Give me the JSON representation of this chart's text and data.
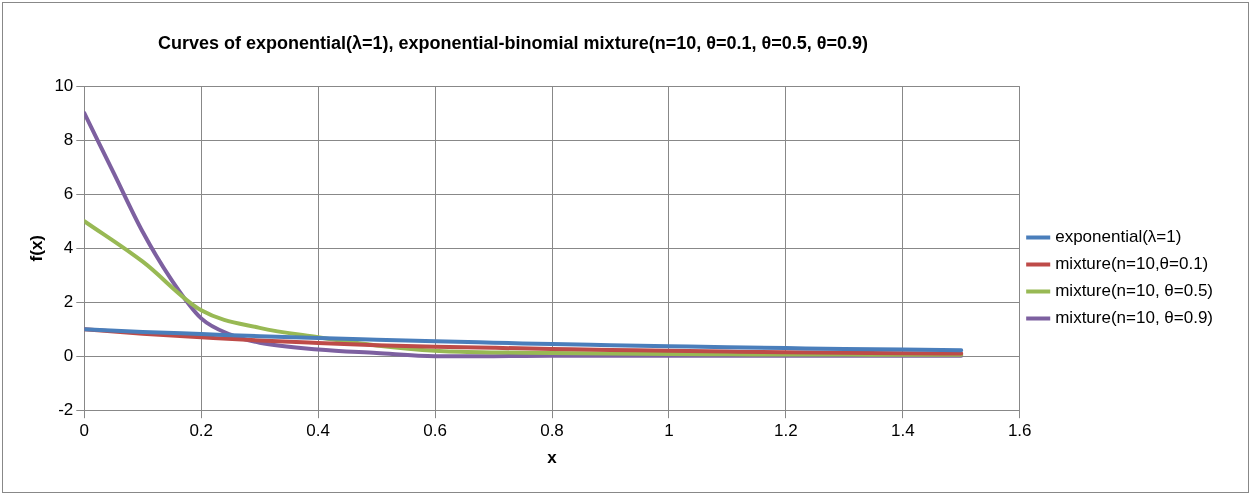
{
  "chart_data": {
    "type": "line",
    "title": "Curves of exponential(λ=1), exponential-binomial mixture(n=10, θ=0.1, θ=0.5, θ=0.9)",
    "xlabel": "x",
    "ylabel": "f(x)",
    "xlim": [
      0,
      1.6
    ],
    "xticks": [
      0,
      0.2,
      0.4,
      0.6,
      0.8,
      1,
      1.2,
      1.4,
      1.6
    ],
    "ylim": [
      -2,
      10
    ],
    "yticks": [
      -2,
      0,
      2,
      4,
      6,
      8,
      10
    ],
    "grid": true,
    "legend": "right",
    "marker": "none",
    "line_style": "solid",
    "series": [
      {
        "name": "exponential(λ=1)",
        "color": "#4a7ebb",
        "x": [
          0,
          0.1,
          0.2,
          0.3,
          0.4,
          0.5,
          0.6,
          0.7,
          0.8,
          0.9,
          1,
          1.1,
          1.2,
          1.3,
          1.4,
          1.5
        ],
        "values": [
          1,
          0.9,
          0.82,
          0.74,
          0.67,
          0.61,
          0.55,
          0.5,
          0.45,
          0.41,
          0.37,
          0.33,
          0.3,
          0.27,
          0.25,
          0.22
        ]
      },
      {
        "name": "mixture(n=10,θ=0.1)",
        "color": "#be4b48",
        "x": [
          0,
          0.1,
          0.2,
          0.3,
          0.4,
          0.5,
          0.6,
          0.7,
          0.8,
          0.9,
          1,
          1.1,
          1.2,
          1.3,
          1.4,
          1.5
        ],
        "values": [
          1,
          0.83,
          0.7,
          0.58,
          0.49,
          0.41,
          0.35,
          0.31,
          0.27,
          0.23,
          0.2,
          0.17,
          0.15,
          0.13,
          0.11,
          0.1
        ]
      },
      {
        "name": "mixture(n=10, θ=0.5)",
        "color": "#98b954",
        "x": [
          0,
          0.1,
          0.2,
          0.3,
          0.4,
          0.5,
          0.6,
          0.7,
          0.8,
          0.9,
          1,
          1.1,
          1.2,
          1.3,
          1.4,
          1.5
        ],
        "values": [
          5,
          3.5,
          1.7,
          1.05,
          0.7,
          0.4,
          0.2,
          0.14,
          0.12,
          0.1,
          0.08,
          0.07,
          0.06,
          0.06,
          0.05,
          0.05
        ]
      },
      {
        "name": "mixture(n=10, θ=0.9)",
        "color": "#7d60a0",
        "x": [
          0,
          0.05,
          0.1,
          0.15,
          0.2,
          0.25,
          0.3,
          0.4,
          0.5,
          0.6,
          0.7,
          0.8,
          0.9,
          1,
          1.1,
          1.2,
          1.3,
          1.4,
          1.5
        ],
        "values": [
          9,
          6.8,
          4.6,
          2.8,
          1.4,
          0.8,
          0.5,
          0.25,
          0.12,
          0,
          0,
          0.02,
          0.02,
          0.02,
          0.02,
          0.02,
          0.02,
          0.02,
          0.02
        ]
      }
    ]
  }
}
